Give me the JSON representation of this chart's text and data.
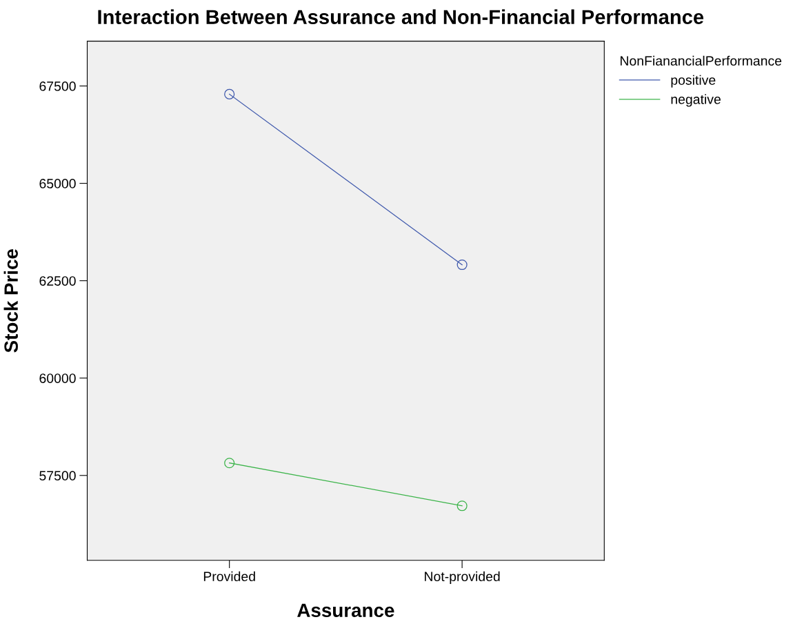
{
  "chart_data": {
    "type": "line",
    "title": "Interaction Between Assurance and Non-Financial Performance",
    "xlabel": "Assurance",
    "ylabel": "Stock Price",
    "legend_title": "NonFianancialPerformance",
    "categories": [
      "Provided",
      "Not-provided"
    ],
    "series": [
      {
        "name": "positive",
        "color": "#3e58ac",
        "values": [
          67290,
          62910
        ]
      },
      {
        "name": "negative",
        "color": "#3cb44a",
        "values": [
          57820,
          56720
        ]
      }
    ],
    "ylim": [
      55320,
      68650
    ],
    "yticks": [
      57500,
      60000,
      62500,
      65000,
      67500
    ],
    "grid": false,
    "legend": "top right",
    "marker": "circle",
    "line_style": "solid"
  }
}
